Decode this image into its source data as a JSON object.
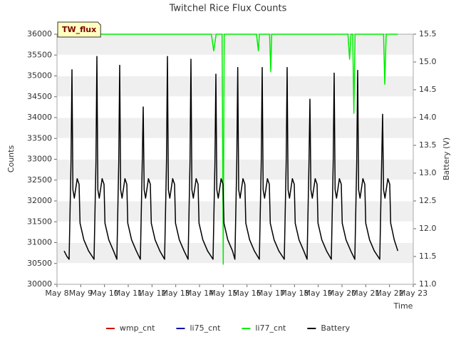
{
  "chart_data": {
    "type": "line",
    "title": "Twitchel Rice Flux Counts",
    "annotation": "TW_flux",
    "xlabel": "Time",
    "ylabel": "Counts",
    "y2label": "Battery (V)",
    "xlim": [
      8,
      23
    ],
    "xticks": [
      {
        "value": 8,
        "label": "May 8"
      },
      {
        "value": 9,
        "label": "May 9"
      },
      {
        "value": 10,
        "label": "May 10"
      },
      {
        "value": 11,
        "label": "May 11"
      },
      {
        "value": 12,
        "label": "May 12"
      },
      {
        "value": 13,
        "label": "May 13"
      },
      {
        "value": 14,
        "label": "May 14"
      },
      {
        "value": 15,
        "label": "May 15"
      },
      {
        "value": 16,
        "label": "May 16"
      },
      {
        "value": 17,
        "label": "May 17"
      },
      {
        "value": 18,
        "label": "May 18"
      },
      {
        "value": 19,
        "label": "May 19"
      },
      {
        "value": 20,
        "label": "May 20"
      },
      {
        "value": 21,
        "label": "May 21"
      },
      {
        "value": 22,
        "label": "May 22"
      },
      {
        "value": 23,
        "label": "May 23"
      }
    ],
    "ylim": [
      30000,
      36000
    ],
    "yticks": [
      30000,
      30500,
      31000,
      31500,
      32000,
      32500,
      33000,
      33500,
      34000,
      34500,
      35000,
      35500,
      36000
    ],
    "y2lim": [
      11.0,
      15.5
    ],
    "y2ticks": [
      {
        "value": 11,
        "label": "11.0"
      },
      11.5,
      {
        "value": 12,
        "label": "12.0"
      },
      12.5,
      {
        "value": 13,
        "label": "13.0"
      },
      13.5,
      {
        "value": 14,
        "label": "14.0"
      },
      14.5,
      {
        "value": 15,
        "label": "15.0"
      },
      15.5
    ],
    "grid": true,
    "legend": "bottom",
    "series": [
      {
        "name": "wmp_cnt",
        "color": "#cc0000"
      },
      {
        "name": "li75_cnt",
        "color": "#0000aa"
      },
      {
        "name": "li77_cnt",
        "color": "#00ee00",
        "x": [
          8.0,
          14.5,
          14.6,
          14.7,
          14.95,
          15.0,
          15.04,
          16.4,
          16.48,
          16.52,
          16.95,
          17.0,
          17.04,
          20.25,
          20.32,
          20.38,
          20.45,
          20.5,
          20.55,
          21.75,
          21.8,
          21.86,
          22.35
        ],
        "values": [
          36000,
          36000,
          35600,
          36000,
          36000,
          30480,
          36000,
          36000,
          35600,
          36000,
          36000,
          35100,
          36000,
          36000,
          35400,
          36000,
          36000,
          34100,
          36000,
          36000,
          34800,
          36000,
          36000
        ]
      },
      {
        "name": "Battery",
        "color": "#000000",
        "axis": "y2",
        "x": [
          8.3,
          8.42,
          8.51,
          8.59,
          8.63,
          8.67,
          8.73,
          8.85,
          8.93,
          8.97,
          9.13,
          9.33,
          9.56,
          9.64,
          9.68,
          9.72,
          9.78,
          9.9,
          9.98,
          10.02,
          10.18,
          10.38,
          10.52,
          10.6,
          10.64,
          10.68,
          10.74,
          10.86,
          10.94,
          10.98,
          11.14,
          11.34,
          11.51,
          11.59,
          11.63,
          11.67,
          11.73,
          11.85,
          11.93,
          11.97,
          12.13,
          12.33,
          12.53,
          12.61,
          12.65,
          12.69,
          12.75,
          12.87,
          12.95,
          12.99,
          13.15,
          13.35,
          13.52,
          13.6,
          13.64,
          13.68,
          13.74,
          13.86,
          13.94,
          13.98,
          14.14,
          14.34,
          14.57,
          14.65,
          14.69,
          14.73,
          14.79,
          14.91,
          14.99,
          15.03,
          15.19,
          15.39,
          15.49,
          15.57,
          15.61,
          15.65,
          15.71,
          15.83,
          15.91,
          15.95,
          16.11,
          16.31,
          16.52,
          16.6,
          16.64,
          16.68,
          16.74,
          16.86,
          16.94,
          16.98,
          17.14,
          17.34,
          17.57,
          17.65,
          17.69,
          17.73,
          17.79,
          17.91,
          17.99,
          18.03,
          18.19,
          18.39,
          18.53,
          18.61,
          18.65,
          18.69,
          18.75,
          18.87,
          18.95,
          18.99,
          19.15,
          19.35,
          19.55,
          19.63,
          19.67,
          19.71,
          19.77,
          19.89,
          19.97,
          20.01,
          20.17,
          20.37,
          20.54,
          20.62,
          20.66,
          20.7,
          20.76,
          20.88,
          20.96,
          21.0,
          21.16,
          21.36,
          21.59,
          21.67,
          21.71,
          21.75,
          21.81,
          21.93,
          22.01,
          22.05,
          22.2,
          22.35
        ],
        "values": [
          11.6,
          11.5,
          11.45,
          13.2,
          14.86,
          12.7,
          12.55,
          12.9,
          12.8,
          12.1,
          11.8,
          11.6,
          11.45,
          13.2,
          15.1,
          12.7,
          12.55,
          12.9,
          12.8,
          12.1,
          11.8,
          11.6,
          11.45,
          13.2,
          14.94,
          12.7,
          12.55,
          12.9,
          12.8,
          12.1,
          11.8,
          11.6,
          11.45,
          13.2,
          14.19,
          12.7,
          12.55,
          12.9,
          12.8,
          12.1,
          11.8,
          11.6,
          11.45,
          13.2,
          15.1,
          12.7,
          12.55,
          12.9,
          12.8,
          12.1,
          11.8,
          11.6,
          11.45,
          13.2,
          15.05,
          12.7,
          12.55,
          12.9,
          12.8,
          12.1,
          11.8,
          11.6,
          11.45,
          13.2,
          14.78,
          12.7,
          12.55,
          12.9,
          12.8,
          12.1,
          11.8,
          11.6,
          11.45,
          13.2,
          14.9,
          12.7,
          12.55,
          12.9,
          12.8,
          12.1,
          11.8,
          11.6,
          11.45,
          13.2,
          14.9,
          12.7,
          12.55,
          12.9,
          12.8,
          12.1,
          11.8,
          11.6,
          11.45,
          13.2,
          14.9,
          12.7,
          12.55,
          12.9,
          12.8,
          12.1,
          11.8,
          11.6,
          11.45,
          13.2,
          14.33,
          12.7,
          12.55,
          12.9,
          12.8,
          12.1,
          11.8,
          11.6,
          11.45,
          13.2,
          14.8,
          12.7,
          12.55,
          12.9,
          12.8,
          12.1,
          11.8,
          11.6,
          11.45,
          13.2,
          14.85,
          12.7,
          12.55,
          12.9,
          12.8,
          12.1,
          11.8,
          11.6,
          11.45,
          13.2,
          14.06,
          12.7,
          12.55,
          12.9,
          12.8,
          12.1,
          11.8,
          11.6
        ]
      }
    ]
  }
}
